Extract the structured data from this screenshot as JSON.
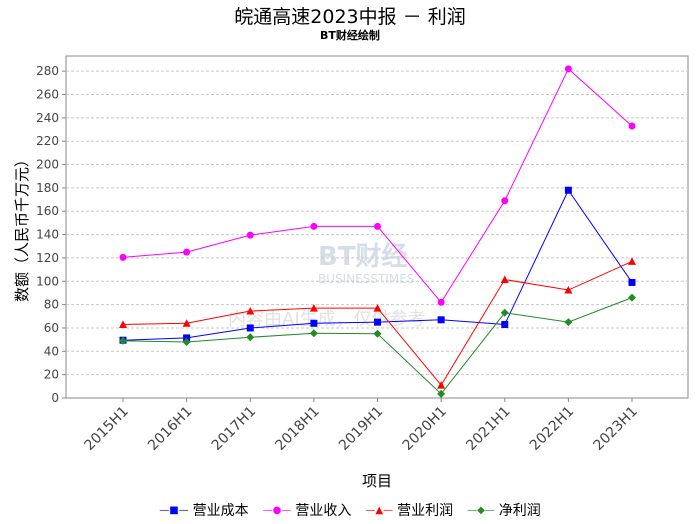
{
  "chart_data": {
    "type": "line",
    "title": "皖通高速2023中报 － 利润",
    "subtitle": "BT财经绘制",
    "xlabel": "项目",
    "ylabel": "数额（人民币千万元）",
    "ylim": [
      0,
      293
    ],
    "yticks": [
      0,
      20,
      40,
      60,
      80,
      100,
      120,
      140,
      160,
      180,
      200,
      220,
      240,
      260,
      280
    ],
    "categories": [
      "2015H1",
      "2016H1",
      "2017H1",
      "2018H1",
      "2019H1",
      "2020H1",
      "2021H1",
      "2022H1",
      "2023H1"
    ],
    "series": [
      {
        "name": "营业成本",
        "color": "#0000ff",
        "marker": "square",
        "values": [
          49.5,
          51.5,
          60,
          64,
          65,
          67,
          63,
          178,
          99
        ]
      },
      {
        "name": "营业收入",
        "color": "#ff00ff",
        "marker": "circle",
        "values": [
          120.5,
          125,
          139.5,
          147,
          147,
          82,
          169,
          282,
          233
        ]
      },
      {
        "name": "营业利润",
        "color": "#ff0000",
        "marker": "triangle",
        "values": [
          63,
          64,
          74.5,
          77,
          77,
          11,
          101.5,
          92.5,
          117
        ]
      },
      {
        "name": "净利润",
        "color": "#228b22",
        "marker": "diamond",
        "values": [
          49,
          48,
          52,
          55.5,
          55,
          3.5,
          73,
          65,
          86
        ]
      }
    ],
    "grid": true,
    "legend": "bottom",
    "watermark": "BT财经 BUSINESSTIMES 内容由AI生成，仅供参考"
  }
}
